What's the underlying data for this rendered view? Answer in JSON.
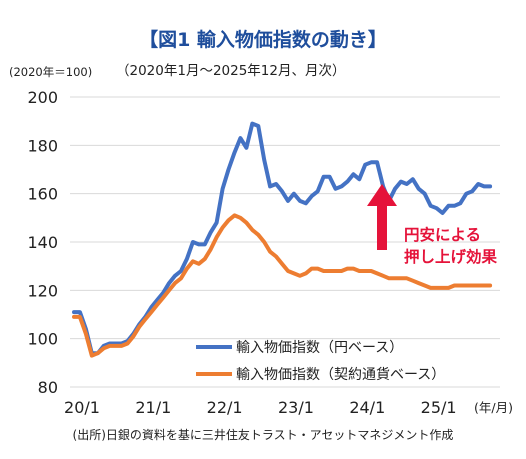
{
  "chart_data": {
    "type": "line",
    "title": "【図1 輸入物価指数の動き】",
    "subtitle": "（2020年1月～2025年12月、月次）",
    "ylabel": "(2020年＝100)",
    "xunit": "(年/月)",
    "ylim": [
      80,
      200
    ],
    "yticks": [
      80,
      100,
      120,
      140,
      160,
      180,
      200
    ],
    "xtick_labels": [
      "20/1",
      "21/1",
      "22/1",
      "23/1",
      "24/1",
      "25/1"
    ],
    "x": [
      "2020-01",
      "2020-02",
      "2020-03",
      "2020-04",
      "2020-05",
      "2020-06",
      "2020-07",
      "2020-08",
      "2020-09",
      "2020-10",
      "2020-11",
      "2020-12",
      "2021-01",
      "2021-02",
      "2021-03",
      "2021-04",
      "2021-05",
      "2021-06",
      "2021-07",
      "2021-08",
      "2021-09",
      "2021-10",
      "2021-11",
      "2021-12",
      "2022-01",
      "2022-02",
      "2022-03",
      "2022-04",
      "2022-05",
      "2022-06",
      "2022-07",
      "2022-08",
      "2022-09",
      "2022-10",
      "2022-11",
      "2022-12",
      "2023-01",
      "2023-02",
      "2023-03",
      "2023-04",
      "2023-05",
      "2023-06",
      "2023-07",
      "2023-08",
      "2023-09",
      "2023-10",
      "2023-11",
      "2023-12",
      "2024-01",
      "2024-02",
      "2024-03",
      "2024-04",
      "2024-05",
      "2024-06",
      "2024-07",
      "2024-08",
      "2024-09",
      "2024-10",
      "2024-11",
      "2024-12",
      "2025-01",
      "2025-02",
      "2025-03",
      "2025-04",
      "2025-05",
      "2025-06",
      "2025-07",
      "2025-08",
      "2025-09",
      "2025-10",
      "2025-11",
      "2025-12"
    ],
    "series": [
      {
        "name": "輸入物価指数（円ベース）",
        "color": "#4472c4",
        "values": [
          111,
          111,
          104,
          94,
          94,
          97,
          98,
          98,
          98,
          99,
          102,
          106,
          109,
          113,
          116,
          119,
          123,
          126,
          128,
          133,
          140,
          139,
          139,
          144,
          148,
          162,
          170,
          177,
          183,
          179,
          189,
          188,
          174,
          163,
          164,
          161,
          157,
          160,
          157,
          156,
          159,
          161,
          167,
          167,
          162,
          163,
          165,
          168,
          166,
          172,
          173,
          173,
          163,
          157,
          162,
          165,
          164,
          166,
          162,
          160,
          155,
          154,
          152,
          155,
          155,
          156,
          160,
          161,
          164,
          163,
          163,
          163
        ]
      },
      {
        "name": "輸入物価指数（契約通貨ベース）",
        "color": "#ed7d31",
        "values": [
          109,
          109,
          102,
          93,
          94,
          96,
          97,
          97,
          97,
          98,
          101,
          105,
          108,
          111,
          114,
          117,
          120,
          123,
          125,
          129,
          132,
          131,
          133,
          137,
          142,
          146,
          149,
          151,
          150,
          148,
          145,
          143,
          140,
          136,
          134,
          131,
          128,
          127,
          126,
          127,
          129,
          129,
          128,
          128,
          128,
          128,
          129,
          129,
          128,
          128,
          128,
          127,
          126,
          125,
          125,
          125,
          125,
          124,
          123,
          122,
          121,
          121,
          121,
          121,
          122,
          122,
          122,
          122,
          122,
          122,
          122,
          122
        ]
      }
    ],
    "visible_months": 71,
    "annotation": {
      "text": [
        "円安による",
        "押し上げ効果"
      ],
      "color": "#e5133a"
    },
    "source": "(出所)日銀の資料を基に三井住友トラスト・アセットマネジメント作成",
    "grid": true,
    "legend": "bottom-right"
  }
}
